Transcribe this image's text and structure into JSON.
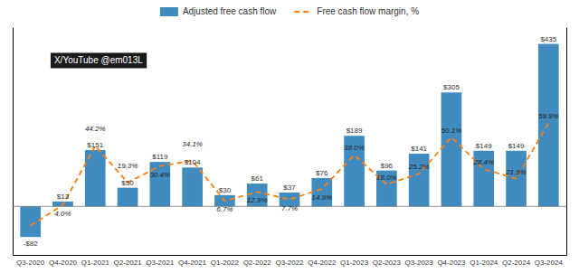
{
  "chart_data": {
    "type": "bar",
    "categories": [
      "Q3-2020",
      "Q4-2020",
      "Q1-2021",
      "Q2-2021",
      "Q3-2021",
      "Q4-2021",
      "Q1-2022",
      "Q2-2022",
      "Q3-2022",
      "Q4-2022",
      "Q1-2023",
      "Q2-2023",
      "Q3-2023",
      "Q4-2023",
      "Q1-2024",
      "Q2-2024",
      "Q3-2024"
    ],
    "series": [
      {
        "name": "Adjusted free cash flow",
        "type": "bar",
        "values": [
          -82,
          13,
          151,
          50,
          119,
          104,
          30,
          61,
          37,
          76,
          189,
          96,
          141,
          305,
          149,
          149,
          435
        ],
        "value_labels": [
          "-$82",
          "$13",
          "$151",
          "$50",
          "$119",
          "$104",
          "$30",
          "$61",
          "$37",
          "$76",
          "$189",
          "$96",
          "$141",
          "$305",
          "$149",
          "$149",
          "$435"
        ]
      },
      {
        "name": "Free cash flow margin, %",
        "type": "line",
        "axis": "y2",
        "line_style": "dashed",
        "values": [
          -10.0,
          4.0,
          44.2,
          19.3,
          30.4,
          34.1,
          6.7,
          12.9,
          7.7,
          14.9,
          38.0,
          18.0,
          25.2,
          50.1,
          28.4,
          21.9,
          59.9
        ],
        "value_labels": [
          null,
          "4.0%",
          "44.2%",
          "19.3%",
          "30.4%",
          "34.1%",
          "6.7%",
          "12.9%",
          "7.7%",
          "14.9%",
          "38.0%",
          "18.0%",
          "25.2%",
          "50.1%",
          "28.4%",
          "21.9%",
          "59.9%"
        ]
      }
    ],
    "ylim": [
      -130,
      480
    ],
    "y2lim": [
      -30,
      125
    ],
    "annotations": [
      "X/YouTube @em013L"
    ],
    "data_labels": true,
    "tick_labels": "x",
    "legend": "top"
  }
}
